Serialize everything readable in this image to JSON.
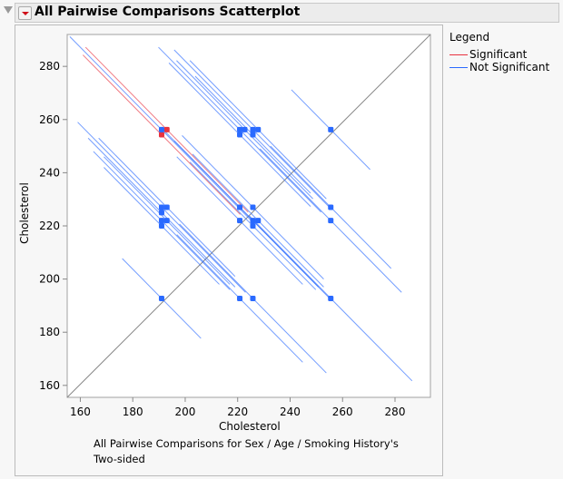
{
  "header": {
    "title": "All Pairwise Comparisons Scatterplot"
  },
  "legend": {
    "title": "Legend",
    "items": [
      {
        "label": "Significant",
        "color": "#e8323f"
      },
      {
        "label": "Not Significant",
        "color": "#2a6aff"
      }
    ]
  },
  "caption": "All Pairwise Comparisons for Sex / Age / Smoking History's Two-sided",
  "chart_data": {
    "type": "scatter",
    "xlabel": "Cholesterol",
    "ylabel": "Cholesterol",
    "xlim": [
      155,
      293.5
    ],
    "ylim": [
      155.5,
      292
    ],
    "xticks": [
      160,
      180,
      200,
      220,
      240,
      260,
      280
    ],
    "yticks": [
      160,
      180,
      200,
      220,
      240,
      260,
      280
    ],
    "reference_line": "y = x",
    "points": [
      {
        "x": 193,
        "y": 256.2,
        "half_width": 31,
        "significant": true
      },
      {
        "x": 191,
        "y": 254.3,
        "half_width": 30,
        "significant": true
      },
      {
        "x": 191,
        "y": 256.2,
        "half_width": 35,
        "significant": false
      },
      {
        "x": 220.8,
        "y": 256.2,
        "half_width": 31,
        "significant": false
      },
      {
        "x": 222.7,
        "y": 256.2,
        "half_width": 26,
        "significant": false
      },
      {
        "x": 225.8,
        "y": 256.2,
        "half_width": 30,
        "significant": false
      },
      {
        "x": 227.8,
        "y": 256.2,
        "half_width": 26,
        "significant": false
      },
      {
        "x": 220.8,
        "y": 254.3,
        "half_width": 27,
        "significant": false
      },
      {
        "x": 225.8,
        "y": 254.3,
        "half_width": 22,
        "significant": false
      },
      {
        "x": 255.5,
        "y": 256.2,
        "half_width": 15,
        "significant": false
      },
      {
        "x": 191,
        "y": 227,
        "half_width": 32,
        "significant": false
      },
      {
        "x": 193,
        "y": 227,
        "half_width": 26,
        "significant": false
      },
      {
        "x": 191,
        "y": 225,
        "half_width": 28,
        "significant": false
      },
      {
        "x": 191,
        "y": 222,
        "half_width": 26,
        "significant": false
      },
      {
        "x": 193,
        "y": 222,
        "half_width": 24,
        "significant": false
      },
      {
        "x": 191,
        "y": 220,
        "half_width": 22,
        "significant": false
      },
      {
        "x": 220.8,
        "y": 227,
        "half_width": 30,
        "significant": false
      },
      {
        "x": 225.8,
        "y": 227,
        "half_width": 27,
        "significant": false
      },
      {
        "x": 220.8,
        "y": 222,
        "half_width": 24,
        "significant": false
      },
      {
        "x": 225.8,
        "y": 222,
        "half_width": 30,
        "significant": false
      },
      {
        "x": 227.8,
        "y": 222,
        "half_width": 25,
        "significant": false
      },
      {
        "x": 225.8,
        "y": 220,
        "half_width": 24,
        "significant": false
      },
      {
        "x": 255.5,
        "y": 227,
        "half_width": 23,
        "significant": false
      },
      {
        "x": 255.5,
        "y": 222,
        "half_width": 27,
        "significant": false
      },
      {
        "x": 191,
        "y": 192.7,
        "half_width": 15,
        "significant": false
      },
      {
        "x": 220.8,
        "y": 192.7,
        "half_width": 24,
        "significant": false
      },
      {
        "x": 225.8,
        "y": 192.7,
        "half_width": 28,
        "significant": false
      },
      {
        "x": 255.5,
        "y": 192.7,
        "half_width": 31,
        "significant": false
      }
    ]
  }
}
